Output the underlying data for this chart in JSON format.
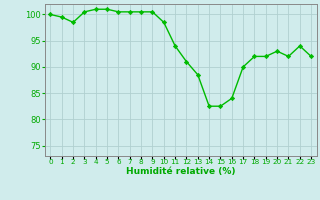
{
  "x": [
    0,
    1,
    2,
    3,
    4,
    5,
    6,
    7,
    8,
    9,
    10,
    11,
    12,
    13,
    14,
    15,
    16,
    17,
    18,
    19,
    20,
    21,
    22,
    23
  ],
  "y": [
    100,
    99.5,
    98.5,
    100.5,
    101,
    101,
    100.5,
    100.5,
    100.5,
    100.5,
    98.5,
    94,
    91,
    88.5,
    82.5,
    82.5,
    84,
    90,
    92,
    92,
    93,
    92,
    94,
    92
  ],
  "xlabel": "Humidité relative (%)",
  "ylim": [
    73,
    102
  ],
  "xlim": [
    -0.5,
    23.5
  ],
  "yticks": [
    75,
    80,
    85,
    90,
    95,
    100
  ],
  "xticks": [
    0,
    1,
    2,
    3,
    4,
    5,
    6,
    7,
    8,
    9,
    10,
    11,
    12,
    13,
    14,
    15,
    16,
    17,
    18,
    19,
    20,
    21,
    22,
    23
  ],
  "line_color": "#00bb00",
  "marker_color": "#00bb00",
  "bg_color": "#d0ecec",
  "grid_color": "#b0d0d0",
  "axis_color": "#888888",
  "tick_color": "#00aa00",
  "figsize": [
    3.2,
    2.0
  ],
  "dpi": 100
}
